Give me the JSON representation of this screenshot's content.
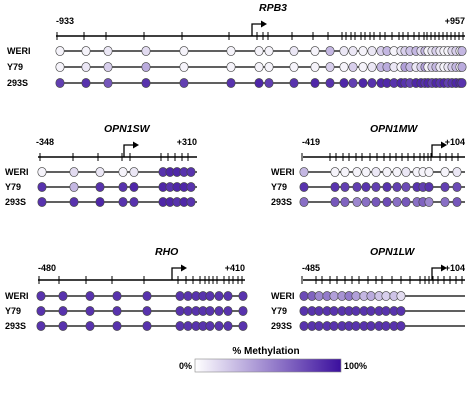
{
  "colors": {
    "low": "#ffffff",
    "high": "#3b0f9e",
    "line": "#000000",
    "stroke": "#444444"
  },
  "genes": [
    {
      "name": "RPB3",
      "start": "-933",
      "end": "+957",
      "rows": [
        {
          "label": "WERI",
          "values": [
            0.05,
            0.05,
            0.1,
            0.15,
            0.05,
            0.05,
            0.05,
            0.05,
            0.1,
            0.05,
            0.3,
            0.1,
            0.1,
            0.05,
            0.1,
            0.2,
            0.3,
            0.05,
            0.1,
            0.2,
            0.25,
            0.3,
            0.15,
            0.3,
            0.05,
            0.1,
            0.2,
            0.1,
            0.05,
            0.05,
            0.15,
            0.2,
            0.05,
            0.3
          ]
        },
        {
          "label": "Y79",
          "values": [
            0.05,
            0.1,
            0.2,
            0.35,
            0.05,
            0.05,
            0.05,
            0.05,
            0.05,
            0.05,
            0.2,
            0.05,
            0.2,
            0.05,
            0.1,
            0.3,
            0.35,
            0.1,
            0.05,
            0.4,
            0.3,
            0.1,
            0.2,
            0.4,
            0.05,
            0.2,
            0.3,
            0.1,
            0.05,
            0.1,
            0.2,
            0.3,
            0.05,
            0.35
          ]
        },
        {
          "label": "293S",
          "values": [
            0.8,
            0.85,
            0.7,
            0.85,
            0.8,
            0.85,
            0.9,
            0.8,
            0.85,
            0.9,
            0.85,
            0.9,
            0.8,
            0.9,
            0.85,
            0.9,
            0.9,
            0.85,
            0.9,
            0.85,
            0.8,
            0.9,
            0.9,
            0.85,
            0.9,
            0.8,
            0.9,
            0.85,
            0.9,
            0.8,
            0.85,
            0.9,
            0.9,
            0.85
          ]
        }
      ]
    },
    {
      "name": "OPN1SW",
      "start": "-348",
      "end": "+310",
      "rows": [
        {
          "label": "WERI",
          "values": [
            0.05,
            0.15,
            0.1,
            0.05,
            0.1,
            0.85,
            0.9,
            0.9,
            0.85,
            0.85
          ]
        },
        {
          "label": "Y79",
          "values": [
            0.85,
            0.3,
            0.85,
            0.85,
            0.9,
            0.9,
            0.85,
            0.9,
            0.9,
            0.85
          ]
        },
        {
          "label": "293S",
          "values": [
            0.85,
            0.85,
            0.9,
            0.85,
            0.85,
            0.9,
            0.9,
            0.85,
            0.9,
            0.85
          ]
        }
      ]
    },
    {
      "name": "OPN1MW",
      "start": "-419",
      "end": "+104",
      "rows": [
        {
          "label": "WERI",
          "values": [
            0.3,
            0.05,
            0.05,
            0.05,
            0.05,
            0.1,
            0.05,
            0.05,
            0.1,
            0.05,
            0.05,
            0.05,
            0.05,
            0.1
          ]
        },
        {
          "label": "Y79",
          "values": [
            0.85,
            0.85,
            0.8,
            0.8,
            0.85,
            0.8,
            0.85,
            0.8,
            0.75,
            0.85,
            0.8,
            0.85,
            0.8,
            0.75
          ]
        },
        {
          "label": "293S",
          "values": [
            0.6,
            0.7,
            0.65,
            0.5,
            0.6,
            0.7,
            0.75,
            0.6,
            0.7,
            0.6,
            0.65,
            0.5,
            0.6,
            0.7
          ]
        }
      ]
    },
    {
      "name": "RHO",
      "start": "-480",
      "end": "+410",
      "rows": [
        {
          "label": "WERI",
          "values": [
            0.85,
            0.85,
            0.85,
            0.85,
            0.85,
            0.85,
            0.85,
            0.85,
            0.85,
            0.85,
            0.85,
            0.85,
            0.85
          ]
        },
        {
          "label": "Y79",
          "values": [
            0.85,
            0.85,
            0.85,
            0.85,
            0.85,
            0.85,
            0.85,
            0.85,
            0.85,
            0.85,
            0.85,
            0.85,
            0.85
          ]
        },
        {
          "label": "293S",
          "values": [
            0.85,
            0.85,
            0.85,
            0.85,
            0.85,
            0.85,
            0.85,
            0.85,
            0.85,
            0.85,
            0.85,
            0.85,
            0.85
          ]
        }
      ]
    },
    {
      "name": "OPN1LW",
      "start": "-485",
      "end": "+104",
      "rows": [
        {
          "label": "WERI",
          "values": [
            0.75,
            0.65,
            0.5,
            0.55,
            0.4,
            0.45,
            0.55,
            0.4,
            0.3,
            0.35,
            0.25,
            0.2,
            0.25,
            0.15
          ]
        },
        {
          "label": "Y79",
          "values": [
            0.85,
            0.85,
            0.85,
            0.85,
            0.85,
            0.85,
            0.85,
            0.85,
            0.85,
            0.85,
            0.85,
            0.85,
            0.85,
            0.85
          ]
        },
        {
          "label": "293S",
          "values": [
            0.85,
            0.85,
            0.85,
            0.85,
            0.85,
            0.85,
            0.85,
            0.85,
            0.85,
            0.85,
            0.85,
            0.85,
            0.85,
            0.85
          ]
        }
      ]
    }
  ],
  "legend": {
    "title": "% Methylation",
    "min": "0%",
    "max": "100%"
  }
}
